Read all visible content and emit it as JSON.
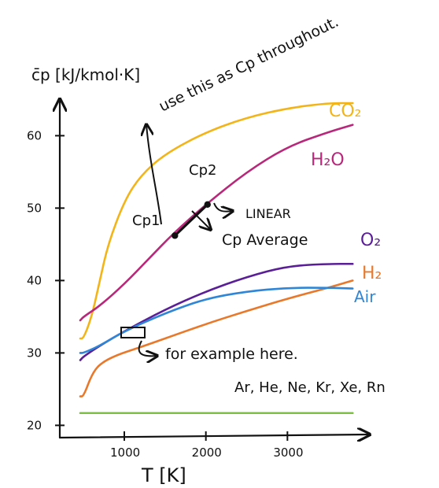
{
  "chart_data": {
    "type": "line",
    "ylabel": "c̄p  [kJ/kmol·K]",
    "xlabel": "T  [K]",
    "xlim": [
      450,
      4000
    ],
    "ylim": [
      17,
      67
    ],
    "x_ticks": [
      {
        "value": 1000,
        "label": "1000"
      },
      {
        "value": 2000,
        "label": "2000"
      },
      {
        "value": 3000,
        "label": "3000"
      }
    ],
    "y_ticks": [
      {
        "value": 20,
        "label": "20"
      },
      {
        "value": 30,
        "label": "30"
      },
      {
        "value": 40,
        "label": "40"
      },
      {
        "value": 50,
        "label": "50"
      },
      {
        "value": 60,
        "label": "60"
      }
    ],
    "grid": false,
    "series": [
      {
        "name": "CO2",
        "color": "#f2b418",
        "x": [
          300,
          500,
          600,
          700,
          800,
          1000,
          1200,
          1500,
          2000,
          2500,
          3000,
          3500,
          3800
        ],
        "y": [
          32,
          32,
          35,
          40,
          45,
          51,
          54.5,
          57.5,
          60.5,
          62.5,
          63.8,
          64.5,
          64.5
        ]
      },
      {
        "name": "H2O",
        "color": "#b8287a",
        "x": [
          300,
          500,
          700,
          1000,
          1300,
          1600,
          2000,
          2500,
          3000,
          3500,
          3800
        ],
        "y": [
          34.5,
          35,
          36.5,
          39.5,
          43,
          46.5,
          50.5,
          55,
          58.5,
          60.5,
          61.5
        ]
      },
      {
        "name": "O2",
        "color": "#5a1f96",
        "x": [
          300,
          500,
          700,
          1000,
          1500,
          2000,
          2500,
          3000,
          3500,
          3800
        ],
        "y": [
          29,
          29.5,
          31,
          33,
          36,
          38.5,
          40.5,
          42,
          42.3,
          42.3
        ]
      },
      {
        "name": "H2",
        "color": "#e8782a",
        "x": [
          300,
          500,
          600,
          700,
          900,
          1200,
          1500,
          2000,
          2500,
          3000,
          3500,
          3800
        ],
        "y": [
          24,
          24,
          27,
          28.5,
          29.7,
          30.8,
          32,
          34,
          35.8,
          37.5,
          39,
          40
        ]
      },
      {
        "name": "Air",
        "color": "#2f86d6",
        "x": [
          300,
          500,
          700,
          1000,
          1500,
          2000,
          2500,
          3000,
          3500,
          3800
        ],
        "y": [
          30,
          30,
          31,
          33,
          35.5,
          37.5,
          38.5,
          39,
          39,
          38.9
        ]
      },
      {
        "name": "Ar, He, Ne, Kr, Xe, Rn",
        "color": "#7dc142",
        "x": [
          300,
          3800
        ],
        "y": [
          21.7,
          21.7
        ]
      }
    ],
    "points": [
      {
        "label": "Cp1",
        "x": 1620,
        "y": 46.2
      },
      {
        "label": "Cp2",
        "x": 2020,
        "y": 50.5
      }
    ],
    "annotations": {
      "top_note": "use this as Cp throughout.",
      "linear": "LINEAR",
      "cp_average": "Cp Average",
      "example": "for example here."
    },
    "series_labels": {
      "CO2": "CO₂",
      "H2O": "H₂O",
      "O2": "O₂",
      "H2": "H₂",
      "Air": "Air",
      "noble": "Ar, He, Ne, Kr, Xe, Rn"
    }
  }
}
